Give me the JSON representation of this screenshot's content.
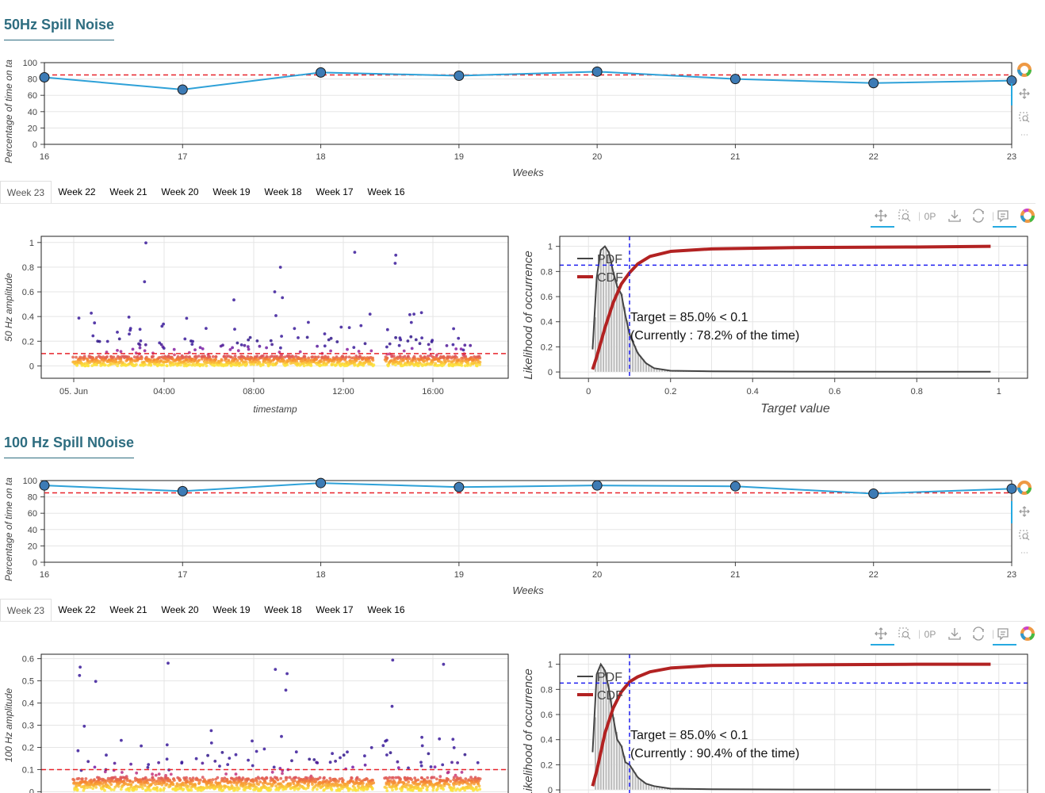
{
  "sections": [
    {
      "title": "50Hz Spill Noise",
      "weekly": {
        "ylabel": "Percentage of time on ta",
        "xlabel": "Weeks",
        "yticks": [
          "0",
          "20",
          "40",
          "60",
          "80",
          "100"
        ],
        "xticks": [
          "16",
          "17",
          "18",
          "19",
          "20",
          "21",
          "22",
          "23"
        ]
      },
      "tabs": [
        "Week 23",
        "Week 22",
        "Week 21",
        "Week 20",
        "Week 19",
        "Week 18",
        "Week 17",
        "Week 16"
      ],
      "scatter": {
        "ylabel": "50 Hz amplitude",
        "xlabel": "timestamp",
        "yticks": [
          "0",
          "0.2",
          "0.4",
          "0.6",
          "0.8",
          "1"
        ],
        "xticks": [
          "05. Jun",
          "04:00",
          "08:00",
          "12:00",
          "16:00"
        ]
      },
      "dist": {
        "ylabel": "Likelihood of occurrence",
        "xlabel": "Target value",
        "yticks": [
          "0",
          "0.2",
          "0.4",
          "0.6",
          "0.8",
          "1"
        ],
        "xticks": [
          "0",
          "0.2",
          "0.4",
          "0.6",
          "0.8",
          "1"
        ],
        "legend": [
          "PDF",
          "CDF"
        ],
        "annotation1": "Target = 85.0% < 0.1",
        "annotation2": "(Currently : 78.2% of the time)"
      }
    },
    {
      "title": "100 Hz Spill N0oise",
      "weekly": {
        "ylabel": "Percentage of time on ta",
        "xlabel": "Weeks",
        "yticks": [
          "0",
          "20",
          "40",
          "60",
          "80",
          "100"
        ],
        "xticks": [
          "16",
          "17",
          "18",
          "19",
          "20",
          "21",
          "22",
          "23"
        ]
      },
      "tabs": [
        "Week 23",
        "Week 22",
        "Week 21",
        "Week 20",
        "Week 19",
        "Week 18",
        "Week 17",
        "Week 16"
      ],
      "scatter": {
        "ylabel": "100 Hz amplitude",
        "xlabel": "timestamp",
        "yticks": [
          "0",
          "0.1",
          "0.2",
          "0.3",
          "0.4",
          "0.5",
          "0.6"
        ],
        "xticks": []
      },
      "dist": {
        "ylabel": "Likelihood of occurrence",
        "xlabel": "Target value",
        "yticks": [
          "0",
          "0.2",
          "0.4",
          "0.6",
          "0.8",
          "1"
        ],
        "xticks": [],
        "legend": [
          "PDF",
          "CDF"
        ],
        "annotation1": "Target = 85.0% < 0.1",
        "annotation2": "(Currently : 90.4% of the time)"
      }
    }
  ],
  "colors": {
    "line": "#2ea1d8",
    "marker": "#3d7bb5",
    "target": "#e8232b",
    "cdf": "#b22222",
    "pdf": "#444444",
    "bins": "#bdbdbd",
    "targetBlue": "#1f1ff0"
  },
  "chart_data": [
    {
      "type": "line",
      "title": "",
      "xlabel": "Weeks",
      "ylabel": "Percentage of time on ta",
      "x": [
        16,
        17,
        18,
        19,
        20,
        21,
        22,
        23
      ],
      "series": [
        {
          "values": [
            82,
            67,
            88,
            84,
            89,
            80,
            75,
            78
          ]
        }
      ],
      "target": 85,
      "ylim": [
        0,
        100
      ],
      "xlim": [
        16,
        23
      ]
    },
    {
      "type": "scatter",
      "title": "",
      "xlabel": "timestamp",
      "ylabel": "50 Hz amplitude",
      "ylim": [
        -0.1,
        1.05
      ],
      "target": 0.1,
      "xticklabels": [
        "05. Jun",
        "04:00",
        "08:00",
        "12:00",
        "16:00"
      ]
    },
    {
      "type": "line",
      "title": "",
      "xlabel": "Target value",
      "ylabel": "Likelihood of occurrence",
      "series": [
        {
          "name": "PDF",
          "x": [
            0.01,
            0.02,
            0.03,
            0.04,
            0.05,
            0.06,
            0.07,
            0.08,
            0.09,
            0.1,
            0.12,
            0.14,
            0.16,
            0.2,
            0.3,
            0.5,
            0.8,
            0.98
          ],
          "values": [
            0.18,
            0.75,
            0.97,
            1.0,
            0.95,
            0.8,
            0.68,
            0.62,
            0.45,
            0.3,
            0.15,
            0.07,
            0.03,
            0.01,
            0.005,
            0.003,
            0.002,
            0.002
          ]
        },
        {
          "name": "CDF",
          "x": [
            0.01,
            0.02,
            0.04,
            0.06,
            0.08,
            0.1,
            0.12,
            0.15,
            0.2,
            0.3,
            0.5,
            0.8,
            0.98
          ],
          "values": [
            0.02,
            0.12,
            0.35,
            0.55,
            0.7,
            0.79,
            0.86,
            0.92,
            0.96,
            0.98,
            0.99,
            0.995,
            1.0
          ]
        }
      ],
      "xlim": [
        -0.07,
        1.07
      ],
      "ylim": [
        -0.05,
        1.08
      ],
      "target_x": 0.1,
      "target_y": 0.85
    },
    {
      "type": "line",
      "title": "",
      "xlabel": "Weeks",
      "ylabel": "Percentage of time on ta",
      "x": [
        16,
        17,
        18,
        19,
        20,
        21,
        22,
        23
      ],
      "series": [
        {
          "values": [
            94,
            87,
            97,
            92,
            94,
            93,
            84,
            90
          ]
        }
      ],
      "target": 85,
      "ylim": [
        0,
        100
      ],
      "xlim": [
        16,
        23
      ]
    },
    {
      "type": "scatter",
      "title": "",
      "xlabel": "timestamp",
      "ylabel": "100 Hz amplitude",
      "ylim": [
        -0.02,
        0.62
      ],
      "target": 0.1
    },
    {
      "type": "line",
      "title": "",
      "xlabel": "Target value",
      "ylabel": "Likelihood of occurrence",
      "series": [
        {
          "name": "PDF",
          "x": [
            0.01,
            0.02,
            0.03,
            0.04,
            0.05,
            0.06,
            0.07,
            0.08,
            0.09,
            0.1,
            0.12,
            0.14,
            0.16,
            0.2,
            0.3,
            0.5,
            0.8,
            0.98
          ],
          "values": [
            0.3,
            0.92,
            1.0,
            0.95,
            0.8,
            0.58,
            0.4,
            0.35,
            0.22,
            0.2,
            0.1,
            0.05,
            0.03,
            0.01,
            0.005,
            0.003,
            0.002,
            0.002
          ]
        },
        {
          "name": "CDF",
          "x": [
            0.01,
            0.02,
            0.04,
            0.06,
            0.08,
            0.1,
            0.12,
            0.15,
            0.2,
            0.3,
            0.5,
            0.8,
            0.98
          ],
          "values": [
            0.03,
            0.15,
            0.45,
            0.65,
            0.78,
            0.86,
            0.9,
            0.94,
            0.97,
            0.99,
            0.995,
            1.0,
            1.0
          ]
        }
      ],
      "xlim": [
        -0.07,
        1.07
      ],
      "ylim": [
        -0.05,
        1.08
      ],
      "target_x": 0.1,
      "target_y": 0.85
    }
  ]
}
